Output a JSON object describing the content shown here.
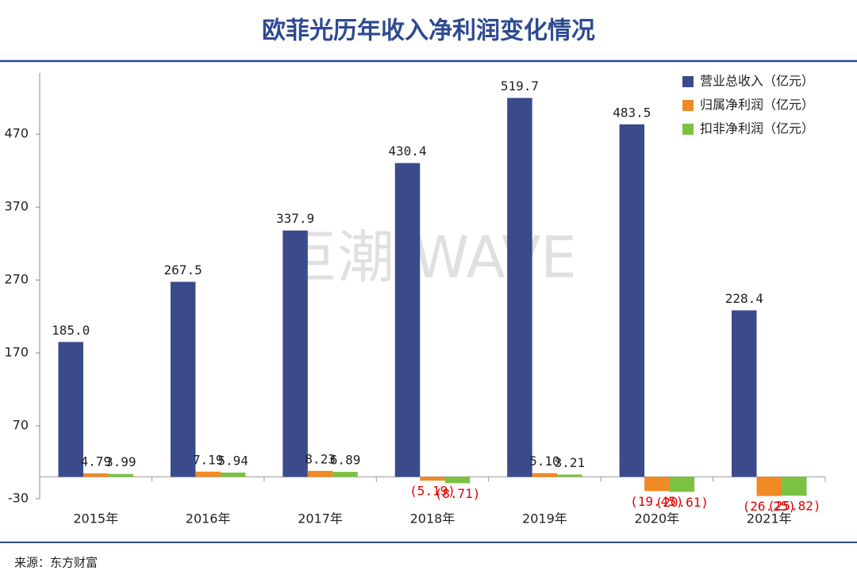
{
  "chart_data": {
    "type": "bar",
    "title": "欧菲光历年收入净利润变化情况",
    "watermark": "巨潮 WAVE",
    "source": "来源：东方财富",
    "categories": [
      "2015年",
      "2016年",
      "2017年",
      "2018年",
      "2019年",
      "2020年",
      "2021年"
    ],
    "series": [
      {
        "name": "营业总收入（亿元）",
        "color": "#3b4a8a",
        "values": [
          185.0,
          267.5,
          337.9,
          430.4,
          519.7,
          483.5,
          228.4
        ],
        "value_labels": [
          "185.0",
          "267.5",
          "337.9",
          "430.4",
          "519.7",
          "483.5",
          "228.4"
        ]
      },
      {
        "name": "归属净利润（亿元）",
        "color": "#f08a24",
        "values": [
          4.79,
          7.19,
          8.23,
          -5.19,
          5.1,
          -19.45,
          -26.25
        ],
        "value_labels": [
          "4.79",
          "7.19",
          "8.23",
          "(5.19)",
          "5.10",
          "(19.45)",
          "(26.25)"
        ]
      },
      {
        "name": "扣非净利润（亿元）",
        "color": "#7cc242",
        "values": [
          3.99,
          5.94,
          6.89,
          -8.71,
          3.21,
          -20.61,
          -25.82
        ],
        "value_labels": [
          "3.99",
          "5.94",
          "6.89",
          "(8.71)",
          "3.21",
          "(20.61)",
          "(25.82)"
        ]
      }
    ],
    "negative_label_color": "#e00000",
    "ylim": [
      -30,
      554
    ],
    "yticks": [
      -30,
      70,
      170,
      270,
      370,
      470
    ],
    "legend": "top-right"
  }
}
